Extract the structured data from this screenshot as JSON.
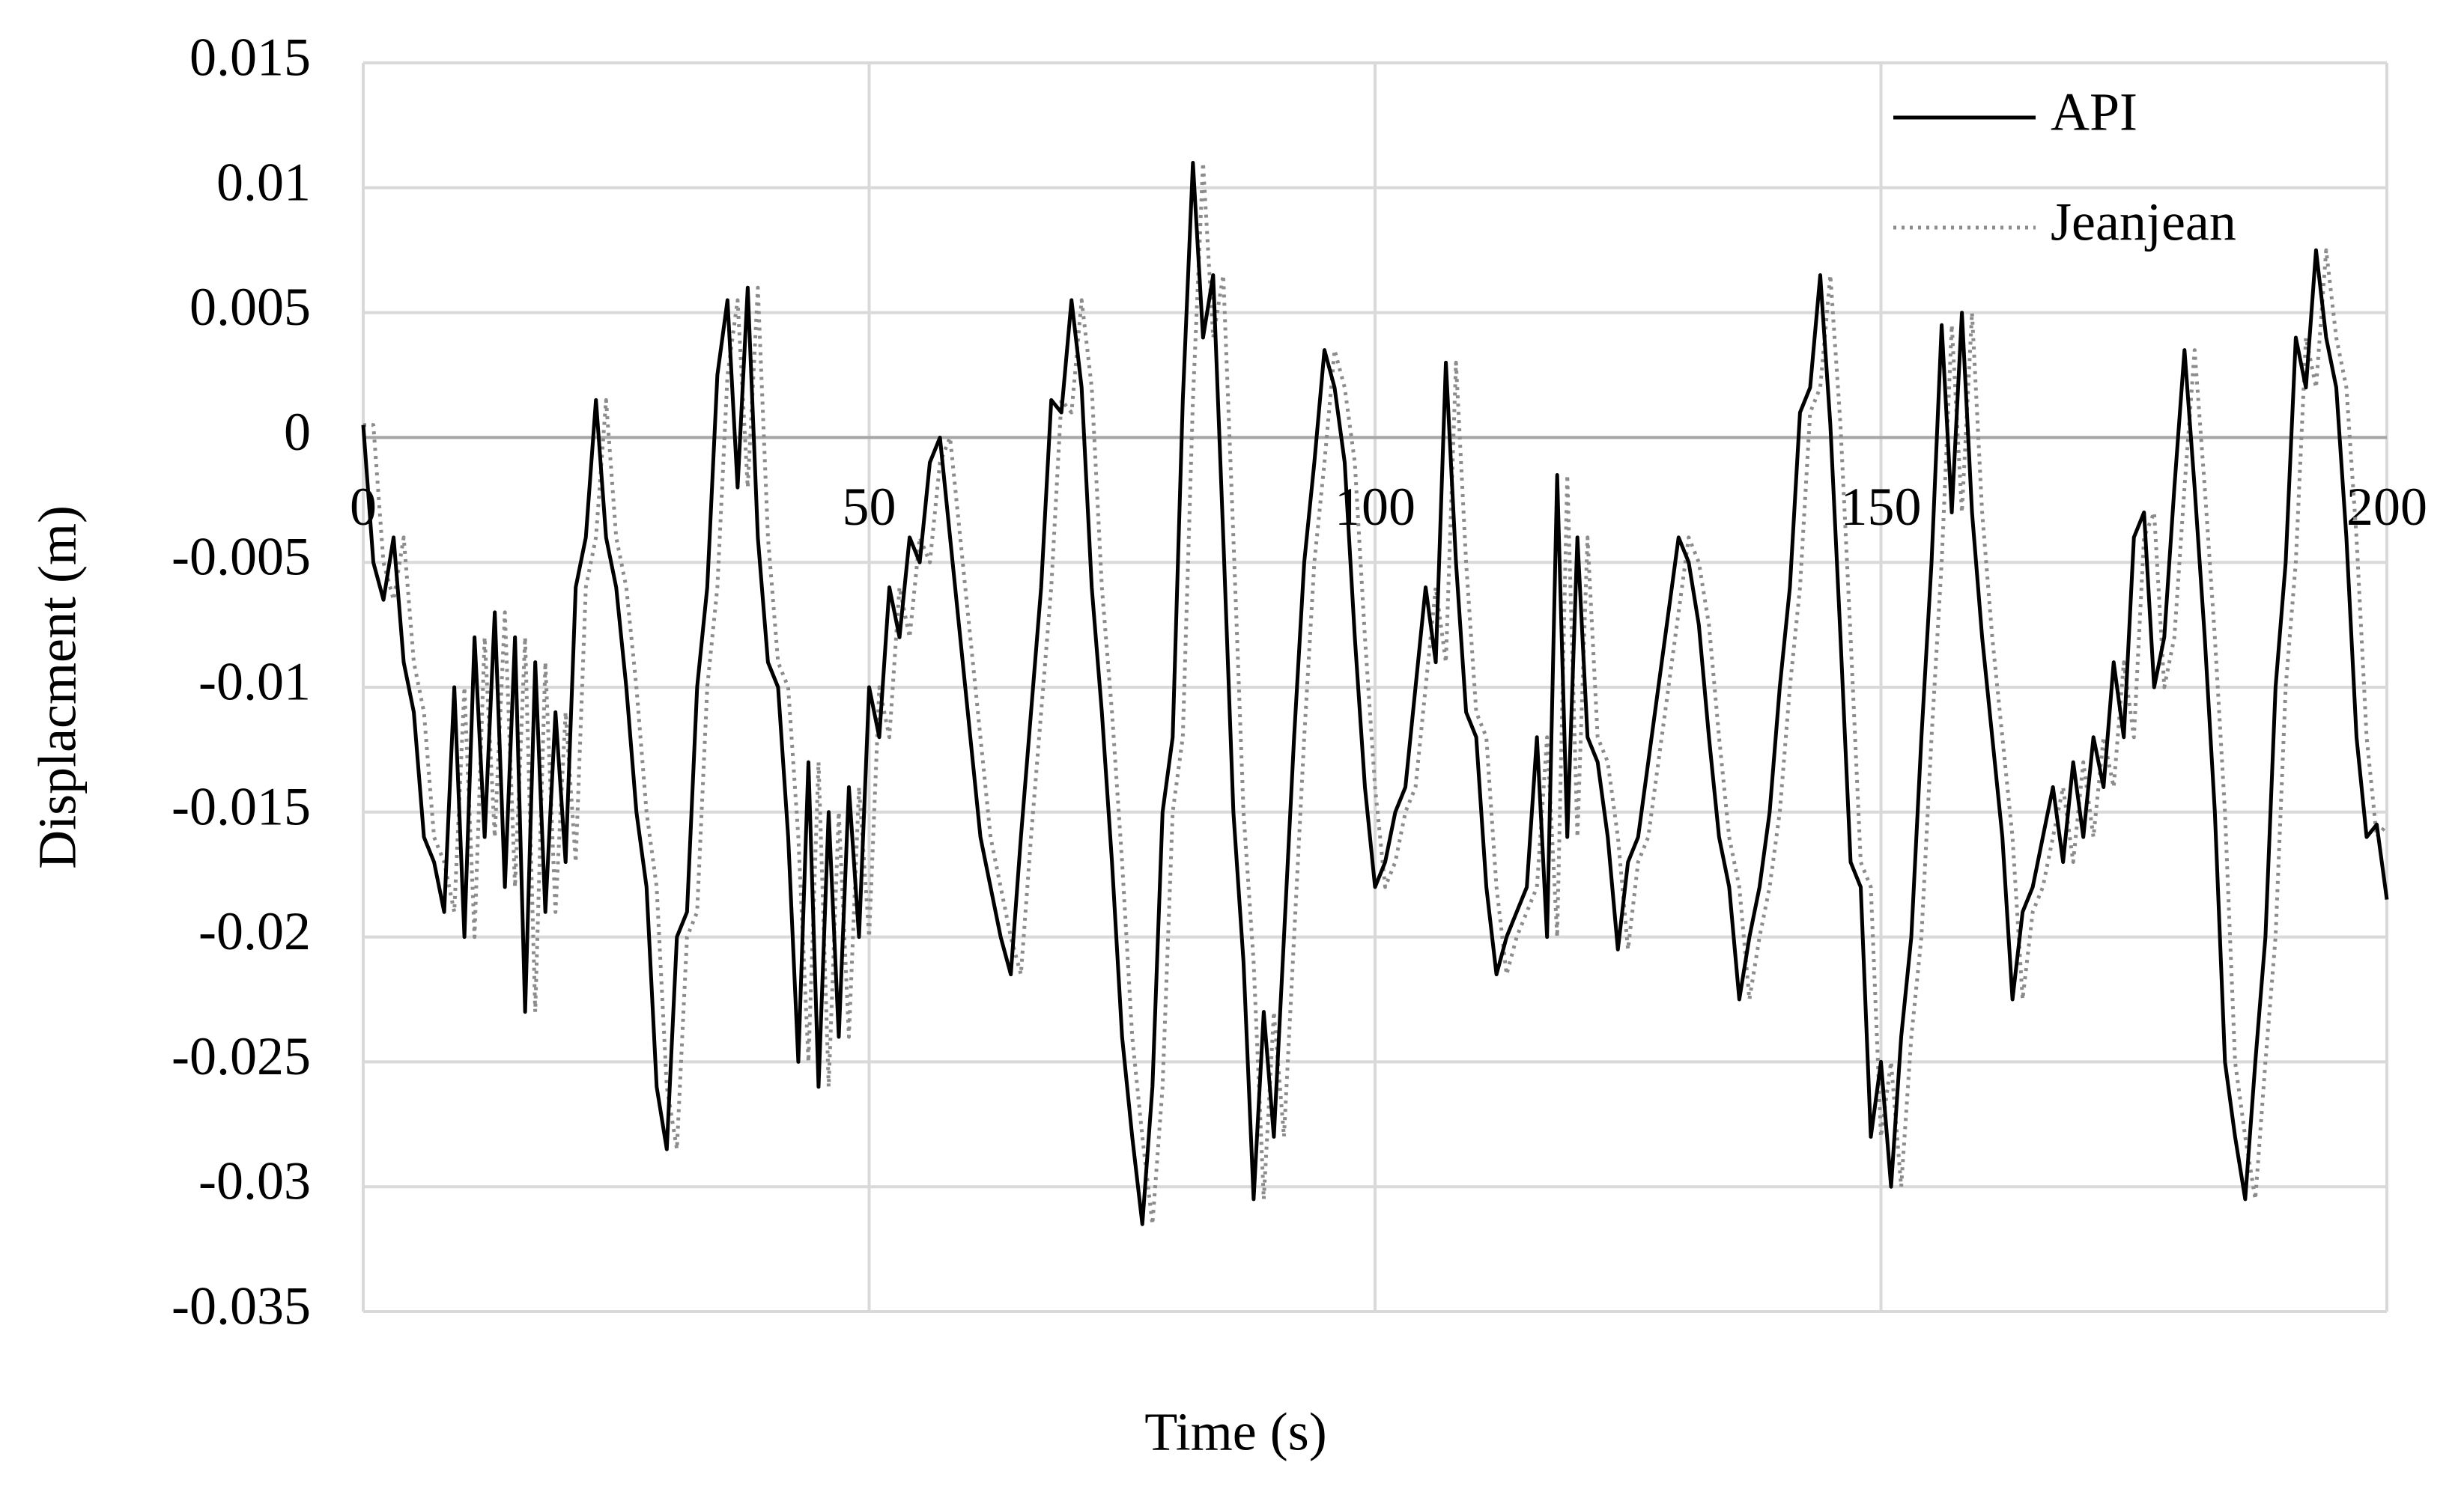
{
  "chart_data": {
    "type": "line",
    "xlabel": "Time (s)",
    "ylabel": "Displacment (m)",
    "x": [
      0,
      1,
      2,
      3,
      4,
      5,
      6,
      7,
      8,
      9,
      10,
      11,
      12,
      13,
      14,
      15,
      16,
      17,
      18,
      19,
      20,
      21,
      22,
      23,
      24,
      25,
      26,
      27,
      28,
      29,
      30,
      31,
      32,
      33,
      34,
      35,
      36,
      37,
      38,
      39,
      40,
      41,
      42,
      43,
      44,
      45,
      46,
      47,
      48,
      49,
      50,
      51,
      52,
      53,
      54,
      55,
      56,
      57,
      58,
      59,
      60,
      61,
      62,
      63,
      64,
      65,
      66,
      67,
      68,
      69,
      70,
      71,
      72,
      73,
      74,
      75,
      76,
      77,
      78,
      79,
      80,
      81,
      82,
      83,
      84,
      85,
      86,
      87,
      88,
      89,
      90,
      91,
      92,
      93,
      94,
      95,
      96,
      97,
      98,
      99,
      100,
      101,
      102,
      103,
      104,
      105,
      106,
      107,
      108,
      109,
      110,
      111,
      112,
      113,
      114,
      115,
      116,
      117,
      118,
      119,
      120,
      121,
      122,
      123,
      124,
      125,
      126,
      127,
      128,
      129,
      130,
      131,
      132,
      133,
      134,
      135,
      136,
      137,
      138,
      139,
      140,
      141,
      142,
      143,
      144,
      145,
      146,
      147,
      148,
      149,
      150,
      151,
      152,
      153,
      154,
      155,
      156,
      157,
      158,
      159,
      160,
      161,
      162,
      163,
      164,
      165,
      166,
      167,
      168,
      169,
      170,
      171,
      172,
      173,
      174,
      175,
      176,
      177,
      178,
      179,
      180,
      181,
      182,
      183,
      184,
      185,
      186,
      187,
      188,
      189,
      190,
      191,
      192,
      193,
      194,
      195,
      196,
      197,
      198,
      199,
      200
    ],
    "series": [
      {
        "name": "API",
        "color": "#000000",
        "dash": false,
        "values": [
          0.0005,
          -0.005,
          -0.0065,
          -0.004,
          -0.009,
          -0.011,
          -0.016,
          -0.017,
          -0.019,
          -0.01,
          -0.02,
          -0.008,
          -0.016,
          -0.007,
          -0.018,
          -0.008,
          -0.023,
          -0.009,
          -0.019,
          -0.011,
          -0.017,
          -0.006,
          -0.004,
          0.0015,
          -0.004,
          -0.006,
          -0.01,
          -0.015,
          -0.018,
          -0.026,
          -0.0285,
          -0.02,
          -0.019,
          -0.01,
          -0.006,
          0.0025,
          0.0055,
          -0.002,
          0.006,
          -0.004,
          -0.009,
          -0.01,
          -0.016,
          -0.025,
          -0.013,
          -0.026,
          -0.015,
          -0.024,
          -0.014,
          -0.02,
          -0.01,
          -0.012,
          -0.006,
          -0.008,
          -0.004,
          -0.005,
          -0.001,
          0,
          -0.004,
          -0.008,
          -0.012,
          -0.016,
          -0.018,
          -0.02,
          -0.0215,
          -0.016,
          -0.011,
          -0.006,
          0.0015,
          0.001,
          0.0055,
          0.002,
          -0.006,
          -0.011,
          -0.017,
          -0.024,
          -0.028,
          -0.0315,
          -0.026,
          -0.015,
          -0.012,
          0.0015,
          0.011,
          0.004,
          0.0065,
          -0.004,
          -0.015,
          -0.021,
          -0.0305,
          -0.023,
          -0.028,
          -0.02,
          -0.012,
          -0.005,
          -0.001,
          0.0035,
          0.002,
          -0.001,
          -0.008,
          -0.014,
          -0.018,
          -0.017,
          -0.015,
          -0.014,
          -0.01,
          -0.006,
          -0.009,
          0.003,
          -0.005,
          -0.011,
          -0.012,
          -0.018,
          -0.0215,
          -0.02,
          -0.019,
          -0.018,
          -0.012,
          -0.02,
          -0.0015,
          -0.016,
          -0.004,
          -0.012,
          -0.013,
          -0.016,
          -0.0205,
          -0.017,
          -0.016,
          -0.013,
          -0.01,
          -0.007,
          -0.004,
          -0.005,
          -0.0075,
          -0.012,
          -0.016,
          -0.018,
          -0.0225,
          -0.02,
          -0.018,
          -0.015,
          -0.01,
          -0.006,
          0.001,
          0.002,
          0.0065,
          0.0005,
          -0.008,
          -0.017,
          -0.018,
          -0.028,
          -0.025,
          -0.03,
          -0.024,
          -0.02,
          -0.012,
          -0.005,
          0.0045,
          -0.003,
          0.005,
          -0.003,
          -0.008,
          -0.012,
          -0.016,
          -0.0225,
          -0.019,
          -0.018,
          -0.016,
          -0.014,
          -0.017,
          -0.013,
          -0.016,
          -0.012,
          -0.014,
          -0.009,
          -0.012,
          -0.004,
          -0.003,
          -0.01,
          -0.008,
          -0.002,
          0.0035,
          -0.002,
          -0.008,
          -0.015,
          -0.025,
          -0.028,
          -0.0305,
          -0.025,
          -0.02,
          -0.01,
          -0.005,
          0.004,
          0.002,
          0.0075,
          0.004,
          0.002,
          -0.004,
          -0.012,
          -0.016,
          -0.0155,
          -0.0185
        ]
      },
      {
        "name": "Jeanjean",
        "color": "#8c8c8c",
        "dash": true,
        "values": [
          0.0005,
          0.0005,
          -0.005,
          -0.0065,
          -0.004,
          -0.009,
          -0.011,
          -0.016,
          -0.017,
          -0.019,
          -0.01,
          -0.02,
          -0.008,
          -0.016,
          -0.007,
          -0.018,
          -0.008,
          -0.023,
          -0.009,
          -0.019,
          -0.011,
          -0.017,
          -0.006,
          -0.004,
          0.0015,
          -0.004,
          -0.006,
          -0.01,
          -0.015,
          -0.018,
          -0.026,
          -0.0285,
          -0.02,
          -0.019,
          -0.01,
          -0.006,
          0.0025,
          0.0055,
          -0.002,
          0.006,
          -0.004,
          -0.009,
          -0.01,
          -0.016,
          -0.025,
          -0.013,
          -0.026,
          -0.015,
          -0.024,
          -0.014,
          -0.02,
          -0.01,
          -0.012,
          -0.006,
          -0.008,
          -0.004,
          -0.005,
          -0.001,
          0,
          -0.004,
          -0.008,
          -0.012,
          -0.016,
          -0.018,
          -0.02,
          -0.0215,
          -0.016,
          -0.011,
          -0.006,
          0.0015,
          0.001,
          0.0055,
          0.002,
          -0.006,
          -0.011,
          -0.017,
          -0.024,
          -0.028,
          -0.0315,
          -0.026,
          -0.015,
          -0.012,
          0.0015,
          0.011,
          0.004,
          0.0065,
          -0.004,
          -0.015,
          -0.021,
          -0.0305,
          -0.023,
          -0.028,
          -0.02,
          -0.012,
          -0.005,
          -0.001,
          0.0035,
          0.002,
          -0.001,
          -0.008,
          -0.014,
          -0.018,
          -0.017,
          -0.015,
          -0.014,
          -0.01,
          -0.006,
          -0.009,
          0.003,
          -0.005,
          -0.011,
          -0.012,
          -0.018,
          -0.0215,
          -0.02,
          -0.019,
          -0.018,
          -0.012,
          -0.02,
          -0.0015,
          -0.016,
          -0.004,
          -0.012,
          -0.013,
          -0.016,
          -0.0205,
          -0.017,
          -0.016,
          -0.013,
          -0.01,
          -0.007,
          -0.004,
          -0.005,
          -0.0075,
          -0.012,
          -0.016,
          -0.018,
          -0.0225,
          -0.02,
          -0.018,
          -0.015,
          -0.01,
          -0.006,
          0.001,
          0.002,
          0.0065,
          0.0005,
          -0.008,
          -0.017,
          -0.018,
          -0.028,
          -0.025,
          -0.03,
          -0.024,
          -0.02,
          -0.012,
          -0.005,
          0.0045,
          -0.003,
          0.005,
          -0.003,
          -0.008,
          -0.012,
          -0.016,
          -0.0225,
          -0.019,
          -0.018,
          -0.016,
          -0.014,
          -0.017,
          -0.013,
          -0.016,
          -0.012,
          -0.014,
          -0.009,
          -0.012,
          -0.004,
          -0.003,
          -0.01,
          -0.008,
          -0.002,
          0.0035,
          -0.002,
          -0.008,
          -0.015,
          -0.025,
          -0.028,
          -0.0305,
          -0.025,
          -0.02,
          -0.01,
          -0.005,
          0.004,
          0.002,
          0.0075,
          0.004,
          0.002,
          -0.004,
          -0.012,
          -0.016,
          -0.0155
        ]
      }
    ],
    "xlim": [
      0,
      200
    ],
    "xticks": [
      0,
      50,
      100,
      150,
      200
    ],
    "ylim": [
      -0.035,
      0.015
    ],
    "yticks": [
      0.015,
      0.01,
      0.005,
      0,
      -0.005,
      -0.01,
      -0.015,
      -0.02,
      -0.025,
      -0.03,
      -0.035
    ],
    "grid": true,
    "legend": "top-right"
  }
}
